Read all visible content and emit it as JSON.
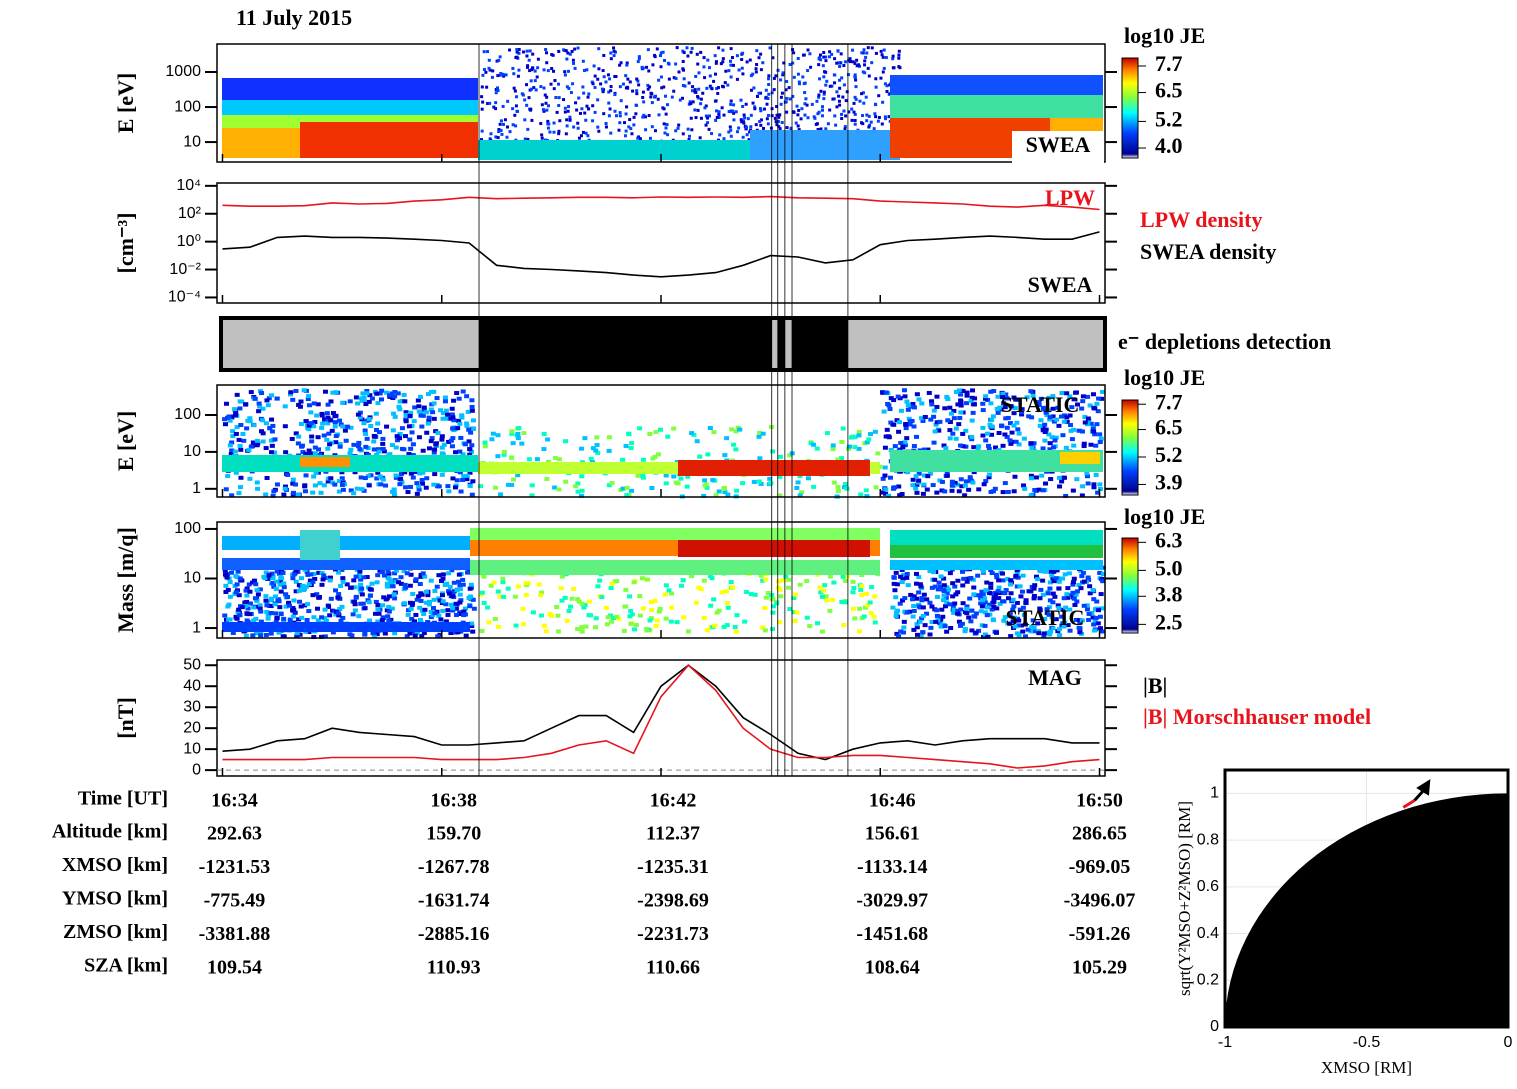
{
  "title": "11 July 2015",
  "time_axis": {
    "label": "Time [UT]",
    "xlim": [
      993.9,
      1010.1
    ],
    "xticks": [
      {
        "value": 994,
        "label": "16:34"
      },
      {
        "value": 998,
        "label": "16:38"
      },
      {
        "value": 1002,
        "label": "16:42"
      },
      {
        "value": 1006,
        "label": "16:46"
      },
      {
        "value": 1010,
        "label": "16:50"
      }
    ],
    "event_lines": [
      998.68,
      1004.02,
      1004.13,
      1004.26,
      1004.39,
      1005.41
    ]
  },
  "chart_data": [
    {
      "type": "spectrogram",
      "ylabel": "E [eV]",
      "log": true,
      "ylim": [
        2.7,
        6300
      ],
      "yticks": [
        10,
        100,
        1000
      ],
      "instrument": "SWEA",
      "colorbar": {
        "title": "log10 JE",
        "clim": [
          3.55,
          8.06
        ],
        "ticks": [
          7.7,
          6.5,
          5.2,
          {
            "value": 4,
            "label": "4.0"
          }
        ]
      }
    },
    {
      "type": "line",
      "ylabel": "[cm⁻³]",
      "log": true,
      "ylim": [
        4e-05,
        16000
      ],
      "yticks": [
        {
          "value": 10000,
          "label": "10⁴"
        },
        {
          "value": 100,
          "label": "10²"
        },
        {
          "value": 1,
          "label": "10⁰"
        },
        {
          "value": 0.01,
          "label": "10⁻²"
        },
        {
          "value": 0.0001,
          "label": "10⁻⁴"
        }
      ],
      "x": [
        994,
        994.5,
        995,
        995.5,
        996,
        996.5,
        997,
        997.5,
        998,
        998.5,
        999,
        999.5,
        1000,
        1000.5,
        1001,
        1001.5,
        1002,
        1002.5,
        1003,
        1003.5,
        1004,
        1004.5,
        1005,
        1005.5,
        1006,
        1006.5,
        1007,
        1007.5,
        1008,
        1008.5,
        1009,
        1009.5,
        1010
      ],
      "series": [
        {
          "name": "LPW density",
          "color": "#e8141c",
          "tag": "LPW",
          "values": [
            400,
            350,
            350,
            380,
            600,
            500,
            550,
            800,
            1000,
            1500,
            1200,
            1300,
            1400,
            1500,
            1500,
            1400,
            1600,
            1500,
            1600,
            1500,
            1700,
            1400,
            1300,
            1200,
            800,
            700,
            600,
            500,
            350,
            300,
            400,
            300,
            200
          ]
        },
        {
          "name": "SWEA density",
          "color": "#000000",
          "tag": "SWEA",
          "values": [
            0.3,
            0.4,
            2,
            2.5,
            2,
            2,
            1.8,
            1.5,
            1.2,
            0.8,
            0.02,
            0.012,
            0.01,
            0.008,
            0.006,
            0.004,
            0.003,
            0.004,
            0.006,
            0.02,
            0.1,
            0.08,
            0.03,
            0.05,
            0.6,
            1.2,
            1.5,
            2,
            2.5,
            2,
            1.5,
            1.5,
            5
          ]
        }
      ]
    },
    {
      "type": "status",
      "label": "e⁻ depletions detection",
      "intervals": [
        [
          998.68,
          1004.02
        ],
        [
          1004.13,
          1004.26
        ],
        [
          1004.39,
          1005.41
        ]
      ]
    },
    {
      "type": "spectrogram",
      "ylabel": "E [eV]",
      "log": true,
      "ylim": [
        0.6,
        650
      ],
      "yticks": [
        1,
        10,
        100
      ],
      "instrument": "STATIC",
      "colorbar": {
        "title": "log10 JE",
        "clim": [
          3.4,
          7.9
        ],
        "ticks": [
          7.7,
          6.5,
          5.2,
          3.9
        ]
      }
    },
    {
      "type": "spectrogram",
      "ylabel": "Mass [m/q]",
      "log": true,
      "ylim": [
        0.63,
        138
      ],
      "yticks": [
        1,
        10,
        100
      ],
      "instrument": "STATIC",
      "colorbar": {
        "title": "log10 JE",
        "clim": [
          2.1,
          6.5
        ],
        "ticks": [
          6.3,
          {
            "value": 5,
            "label": "5.0"
          },
          3.8,
          2.5
        ]
      }
    },
    {
      "type": "line",
      "ylabel": "[nT]",
      "instrument": "MAG",
      "ylim": [
        -2.8,
        52.5
      ],
      "yticks": [
        0,
        10,
        20,
        30,
        40,
        50
      ],
      "zero_line": true,
      "x": [
        994,
        994.5,
        995,
        995.5,
        996,
        996.5,
        997,
        997.5,
        998,
        998.5,
        999,
        999.5,
        1000,
        1000.5,
        1001,
        1001.5,
        1002,
        1002.5,
        1003,
        1003.5,
        1004,
        1004.5,
        1005,
        1005.5,
        1006,
        1006.5,
        1007,
        1007.5,
        1008,
        1008.5,
        1009,
        1009.5,
        1010
      ],
      "series": [
        {
          "name": "|B|",
          "color": "#000000",
          "values": [
            9,
            10,
            14,
            15,
            20,
            18,
            17,
            16,
            12,
            12,
            13,
            14,
            20,
            26,
            26,
            18,
            40,
            50,
            40,
            25,
            17,
            8,
            5,
            10,
            13,
            14,
            12,
            14,
            15,
            15,
            15,
            13,
            13
          ]
        },
        {
          "name": "|B| Morschhauser model",
          "color": "#e8141c",
          "values": [
            5,
            5,
            5,
            5,
            6,
            6,
            6,
            6,
            5,
            5,
            5,
            6,
            8,
            12,
            14,
            8,
            35,
            50,
            38,
            20,
            10,
            6,
            6,
            7,
            7,
            6,
            5,
            4,
            3,
            1,
            2,
            4,
            5
          ]
        }
      ]
    },
    {
      "type": "orbit",
      "xlabel": "XMSO [RM]",
      "ylabel": "sqrt(Y²MSO+Z²MSO) [RM]",
      "xlim": [
        -1,
        0
      ],
      "ylim": [
        0,
        1.1
      ],
      "xticks": [
        -1,
        -0.5,
        0
      ],
      "yticks": [
        0,
        0.2,
        0.4,
        0.6,
        0.8,
        1
      ],
      "grid": true,
      "series": [
        {
          "color": "#e8141c",
          "x": [
            -0.37,
            -0.35,
            -0.33
          ],
          "values": [
            0.94,
            0.955,
            0.97
          ]
        },
        {
          "color": "#000000",
          "x": [
            -0.33,
            -0.3,
            -0.28
          ],
          "values": [
            0.97,
            1.01,
            1.05
          ]
        }
      ]
    }
  ],
  "ephemeris": {
    "rows": [
      {
        "label": "Altitude [km]",
        "values": [
          "292.63",
          "159.70",
          "112.37",
          "156.61",
          "286.65"
        ]
      },
      {
        "label": "XMSO [km]",
        "values": [
          "-1231.53",
          "-1267.78",
          "-1235.31",
          "-1133.14",
          "-969.05"
        ]
      },
      {
        "label": "YMSO [km]",
        "values": [
          "-775.49",
          "-1631.74",
          "-2398.69",
          "-3029.97",
          "-3496.07"
        ]
      },
      {
        "label": "ZMSO [km]",
        "values": [
          "-3381.88",
          "-2885.16",
          "-2231.73",
          "-1451.68",
          "-591.26"
        ]
      },
      {
        "label": "SZA [km]",
        "values": [
          "109.54",
          "110.93",
          "110.66",
          "108.64",
          "105.29"
        ]
      }
    ]
  }
}
